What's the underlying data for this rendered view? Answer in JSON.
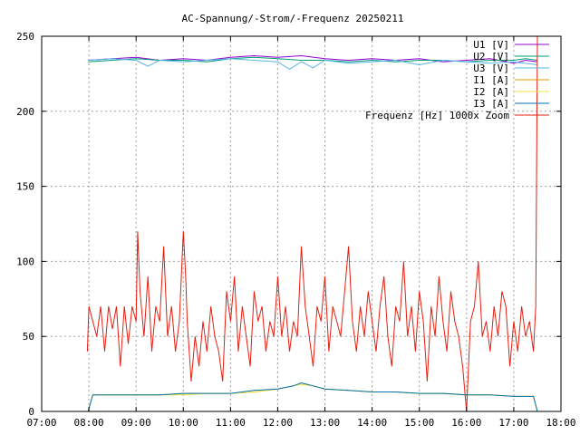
{
  "chart_data": {
    "type": "line",
    "title": "AC-Spannung/-Strom/-Frequenz 20250211",
    "xlabel": "",
    "ylabel": "",
    "xlim": [
      "07:00",
      "18:00"
    ],
    "ylim": [
      0,
      250
    ],
    "x_ticks": [
      "07:00",
      "08:00",
      "09:00",
      "10:00",
      "11:00",
      "12:00",
      "13:00",
      "14:00",
      "15:00",
      "16:00",
      "17:00",
      "18:00"
    ],
    "y_ticks": [
      0,
      50,
      100,
      150,
      200,
      250
    ],
    "grid": true,
    "legend_position": "top-right",
    "series": [
      {
        "name": "U1 [V]",
        "color": "#9400d3",
        "x": [
          "07:59",
          "08:30",
          "09:00",
          "09:30",
          "10:00",
          "10:30",
          "11:00",
          "11:30",
          "12:00",
          "12:30",
          "13:00",
          "13:30",
          "14:00",
          "14:30",
          "15:00",
          "15:30",
          "16:00",
          "16:30",
          "17:00",
          "17:15",
          "17:30"
        ],
        "values": [
          234,
          235,
          236,
          234,
          235,
          234,
          236,
          237,
          236,
          237,
          235,
          234,
          235,
          234,
          235,
          233,
          234,
          235,
          232,
          234,
          233
        ]
      },
      {
        "name": "U2 [V]",
        "color": "#009e73",
        "x": [
          "07:59",
          "08:30",
          "09:00",
          "09:30",
          "10:00",
          "10:30",
          "11:00",
          "11:30",
          "12:00",
          "12:30",
          "13:00",
          "13:30",
          "14:00",
          "14:30",
          "15:00",
          "15:30",
          "16:00",
          "16:30",
          "17:00",
          "17:15",
          "17:30"
        ],
        "values": [
          233,
          234,
          235,
          234,
          234,
          233,
          235,
          236,
          235,
          234,
          234,
          233,
          234,
          233,
          234,
          234,
          233,
          234,
          234,
          235,
          234
        ]
      },
      {
        "name": "U3 [V]",
        "color": "#56b4e9",
        "x": [
          "07:59",
          "08:30",
          "09:00",
          "09:15",
          "09:30",
          "10:00",
          "10:30",
          "11:00",
          "11:30",
          "12:00",
          "12:15",
          "12:30",
          "12:45",
          "13:00",
          "13:30",
          "14:00",
          "14:30",
          "15:00",
          "15:30",
          "16:00",
          "16:30",
          "17:00",
          "17:30"
        ],
        "values": [
          234,
          235,
          234,
          230,
          234,
          233,
          234,
          235,
          234,
          233,
          228,
          233,
          229,
          234,
          232,
          233,
          234,
          231,
          234,
          233,
          232,
          233,
          231
        ]
      },
      {
        "name": "I1 [A]",
        "color": "#e69f00",
        "x": [
          "07:59",
          "08:05",
          "08:30",
          "09:00",
          "09:30",
          "10:00",
          "10:30",
          "11:00",
          "11:30",
          "12:00",
          "12:20",
          "12:30",
          "12:45",
          "13:00",
          "13:30",
          "14:00",
          "14:30",
          "15:00",
          "15:30",
          "16:00",
          "16:30",
          "17:00",
          "17:25",
          "17:30"
        ],
        "values": [
          0,
          11,
          11,
          11,
          11,
          12,
          12,
          12,
          13,
          15,
          17,
          19,
          17,
          15,
          14,
          13,
          13,
          12,
          12,
          11,
          11,
          10,
          10,
          0
        ]
      },
      {
        "name": "I2 [A]",
        "color": "#f0e442",
        "x": [
          "07:59",
          "08:05",
          "08:30",
          "09:00",
          "09:30",
          "10:00",
          "10:30",
          "11:00",
          "11:30",
          "12:00",
          "12:20",
          "12:30",
          "12:45",
          "13:00",
          "13:30",
          "14:00",
          "14:30",
          "15:00",
          "15:30",
          "16:00",
          "16:30",
          "17:00",
          "17:25",
          "17:30"
        ],
        "values": [
          0,
          11,
          11,
          11,
          11,
          11,
          12,
          12,
          13,
          15,
          17,
          18,
          17,
          15,
          14,
          13,
          13,
          12,
          12,
          11,
          11,
          10,
          10,
          0
        ]
      },
      {
        "name": "I3 [A]",
        "color": "#0072b2",
        "x": [
          "07:59",
          "08:05",
          "08:30",
          "09:00",
          "09:30",
          "10:00",
          "10:30",
          "11:00",
          "11:30",
          "12:00",
          "12:20",
          "12:30",
          "12:45",
          "13:00",
          "13:30",
          "14:00",
          "14:30",
          "15:00",
          "15:30",
          "16:00",
          "16:30",
          "17:00",
          "17:25",
          "17:30"
        ],
        "values": [
          0,
          11,
          11,
          11,
          11,
          12,
          12,
          12,
          14,
          15,
          17,
          19,
          17,
          15,
          14,
          13,
          13,
          12,
          12,
          11,
          11,
          10,
          10,
          0
        ]
      },
      {
        "name": "Frequenz [Hz] 1000x Zoom",
        "color": "#e51e10",
        "x": [
          "07:58",
          "08:00",
          "08:05",
          "08:10",
          "08:15",
          "08:20",
          "08:25",
          "08:30",
          "08:35",
          "08:40",
          "08:45",
          "08:50",
          "08:55",
          "09:00",
          "09:02",
          "09:05",
          "09:10",
          "09:15",
          "09:20",
          "09:25",
          "09:30",
          "09:35",
          "09:40",
          "09:45",
          "09:50",
          "09:55",
          "10:00",
          "10:03",
          "10:05",
          "10:10",
          "10:15",
          "10:20",
          "10:25",
          "10:30",
          "10:35",
          "10:40",
          "10:45",
          "10:50",
          "10:55",
          "11:00",
          "11:05",
          "11:10",
          "11:15",
          "11:20",
          "11:25",
          "11:30",
          "11:35",
          "11:40",
          "11:45",
          "11:50",
          "11:55",
          "12:00",
          "12:05",
          "12:10",
          "12:15",
          "12:20",
          "12:25",
          "12:30",
          "12:35",
          "12:40",
          "12:45",
          "12:50",
          "12:55",
          "13:00",
          "13:05",
          "13:10",
          "13:15",
          "13:20",
          "13:25",
          "13:30",
          "13:35",
          "13:40",
          "13:45",
          "13:50",
          "13:55",
          "14:00",
          "14:05",
          "14:10",
          "14:15",
          "14:20",
          "14:25",
          "14:30",
          "14:35",
          "14:40",
          "14:45",
          "14:50",
          "14:55",
          "15:00",
          "15:05",
          "15:10",
          "15:15",
          "15:20",
          "15:25",
          "15:30",
          "15:35",
          "15:40",
          "15:45",
          "15:50",
          "15:55",
          "16:00",
          "16:05",
          "16:10",
          "16:15",
          "16:20",
          "16:25",
          "16:30",
          "16:35",
          "16:40",
          "16:45",
          "16:50",
          "16:55",
          "17:00",
          "17:05",
          "17:10",
          "17:15",
          "17:20",
          "17:25",
          "17:28",
          "17:30"
        ],
        "values": [
          40,
          70,
          60,
          50,
          70,
          40,
          70,
          55,
          70,
          30,
          70,
          45,
          70,
          60,
          120,
          80,
          50,
          90,
          40,
          70,
          60,
          110,
          50,
          70,
          40,
          60,
          120,
          90,
          60,
          20,
          50,
          30,
          60,
          40,
          70,
          50,
          40,
          20,
          80,
          60,
          90,
          40,
          70,
          50,
          30,
          80,
          60,
          70,
          40,
          60,
          50,
          90,
          50,
          70,
          40,
          60,
          50,
          110,
          70,
          50,
          30,
          70,
          60,
          90,
          40,
          70,
          60,
          50,
          80,
          110,
          60,
          40,
          70,
          50,
          80,
          60,
          40,
          70,
          90,
          50,
          30,
          70,
          60,
          100,
          50,
          70,
          40,
          80,
          60,
          20,
          70,
          50,
          90,
          60,
          40,
          80,
          60,
          50,
          30,
          0,
          60,
          70,
          100,
          50,
          60,
          40,
          70,
          50,
          80,
          70,
          30,
          60,
          40,
          70,
          50,
          60,
          40,
          70,
          250
        ]
      }
    ]
  }
}
